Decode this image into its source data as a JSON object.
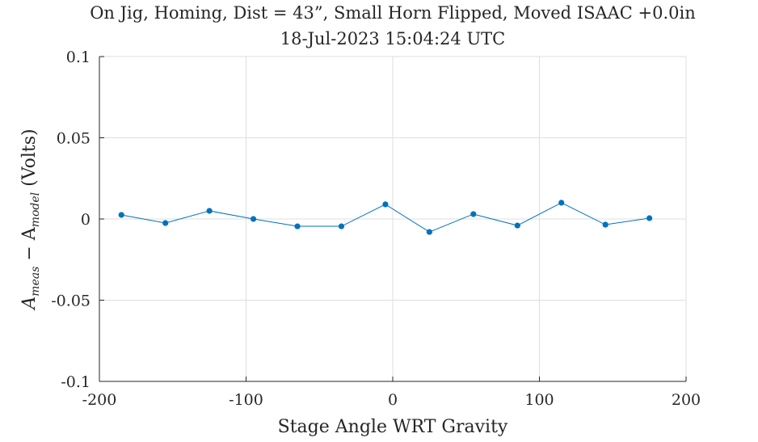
{
  "chart_data": {
    "type": "line",
    "title": "On Jig, Homing, Dist = 43”, Small Horn Flipped, Moved ISAAC +0.0in",
    "subtitle": "18-Jul-2023 15:04:24 UTC",
    "xlabel": "Stage Angle WRT Gravity",
    "ylabel": {
      "prefix": "A",
      "sub1": "meas",
      "middle": " − A",
      "sub2": "model",
      "suffix": " (Volts)"
    },
    "xlim": [
      -200,
      200
    ],
    "ylim": [
      -0.1,
      0.1
    ],
    "xticks": [
      -200,
      -100,
      0,
      100,
      200
    ],
    "xtick_labels": [
      "-200",
      "-100",
      "0",
      "100",
      "200"
    ],
    "yticks": [
      -0.1,
      -0.05,
      0,
      0.05,
      0.1
    ],
    "ytick_labels": [
      "-0.1",
      "-0.05",
      "0",
      "0.05",
      "0.1"
    ],
    "grid": true,
    "series_color": "#0072BD",
    "series": [
      {
        "x": [
          -185,
          -155,
          -125,
          -95,
          -65,
          -35,
          -5,
          25,
          55,
          85,
          115,
          145,
          175
        ],
        "y": [
          0.0025,
          -0.0025,
          0.005,
          0.0,
          -0.0045,
          -0.0045,
          0.009,
          -0.008,
          0.003,
          -0.004,
          0.01,
          -0.0035,
          0.0005
        ]
      }
    ]
  }
}
